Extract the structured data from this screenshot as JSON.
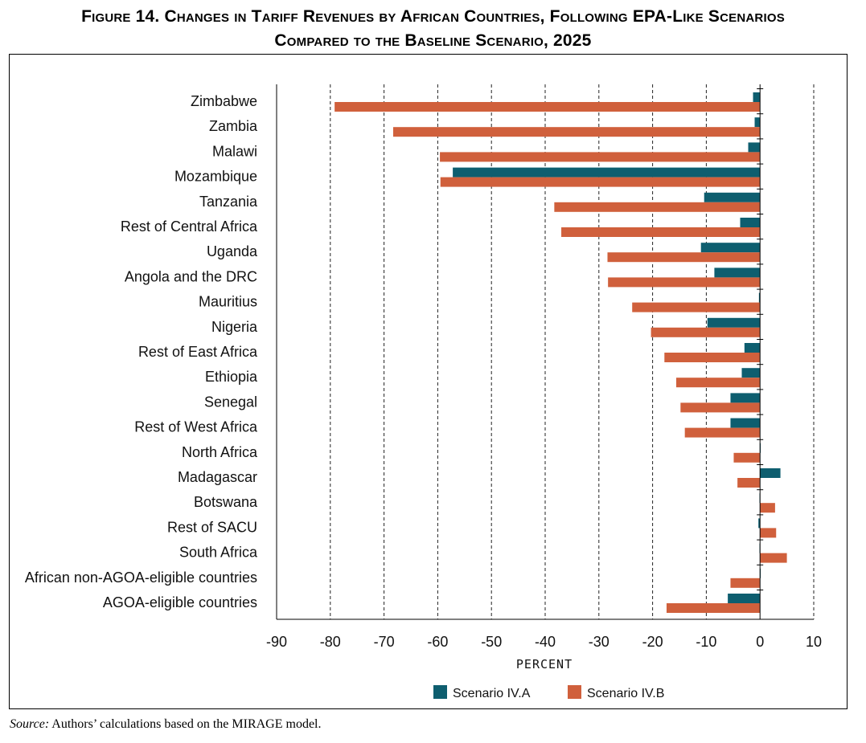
{
  "title_line1": "Figure 14. Changes in Tariff Revenues by African Countries, Following EPA-Like Scenarios",
  "title_line2": "Compared to the Baseline Scenario, 2025",
  "source_label": "Source:",
  "source_text": "Authors’ calculations based on the MIRAGE model.",
  "colors": {
    "series_a": "#0e5e6f",
    "series_b": "#d0603c"
  },
  "chart_data": {
    "type": "bar",
    "orientation": "horizontal",
    "xlabel": "PERCENT",
    "xlim": [
      -90,
      10
    ],
    "xticks": [
      "-90",
      "-80",
      "-70",
      "-60",
      "-50",
      "-40",
      "-30",
      "-20",
      "-10",
      "0",
      "10"
    ],
    "grid": "dashed vertical",
    "legend_position": "bottom",
    "categories": [
      "Zimbabwe",
      "Zambia",
      "Malawi",
      "Mozambique",
      "Tanzania",
      "Rest of Central Africa",
      "Uganda",
      "Angola and the DRC",
      "Mauritius",
      "Nigeria",
      "Rest of East Africa",
      "Ethiopia",
      "Senegal",
      "Rest of West Africa",
      "North Africa",
      "Madagascar",
      "Botswana",
      "Rest of SACU",
      "South Africa",
      "African non-AGOA-eligible countries",
      "AGOA-eligible countries"
    ],
    "series": [
      {
        "name": "Scenario IV.A",
        "values": [
          -1.3,
          -1.0,
          -2.2,
          -57.2,
          -10.4,
          -3.7,
          -11.0,
          -8.5,
          -0.2,
          -9.8,
          -2.9,
          -3.4,
          -5.5,
          -5.5,
          0,
          3.8,
          -0.1,
          -0.3,
          -0.1,
          0,
          -6.0
        ]
      },
      {
        "name": "Scenario IV.B",
        "values": [
          -79.2,
          -68.3,
          -59.6,
          -59.5,
          -38.3,
          -37.0,
          -28.4,
          -28.3,
          -23.8,
          -20.3,
          -17.8,
          -15.6,
          -14.8,
          -14.0,
          -4.9,
          -4.2,
          2.8,
          3.0,
          5.0,
          -5.5,
          -17.4
        ]
      }
    ]
  }
}
